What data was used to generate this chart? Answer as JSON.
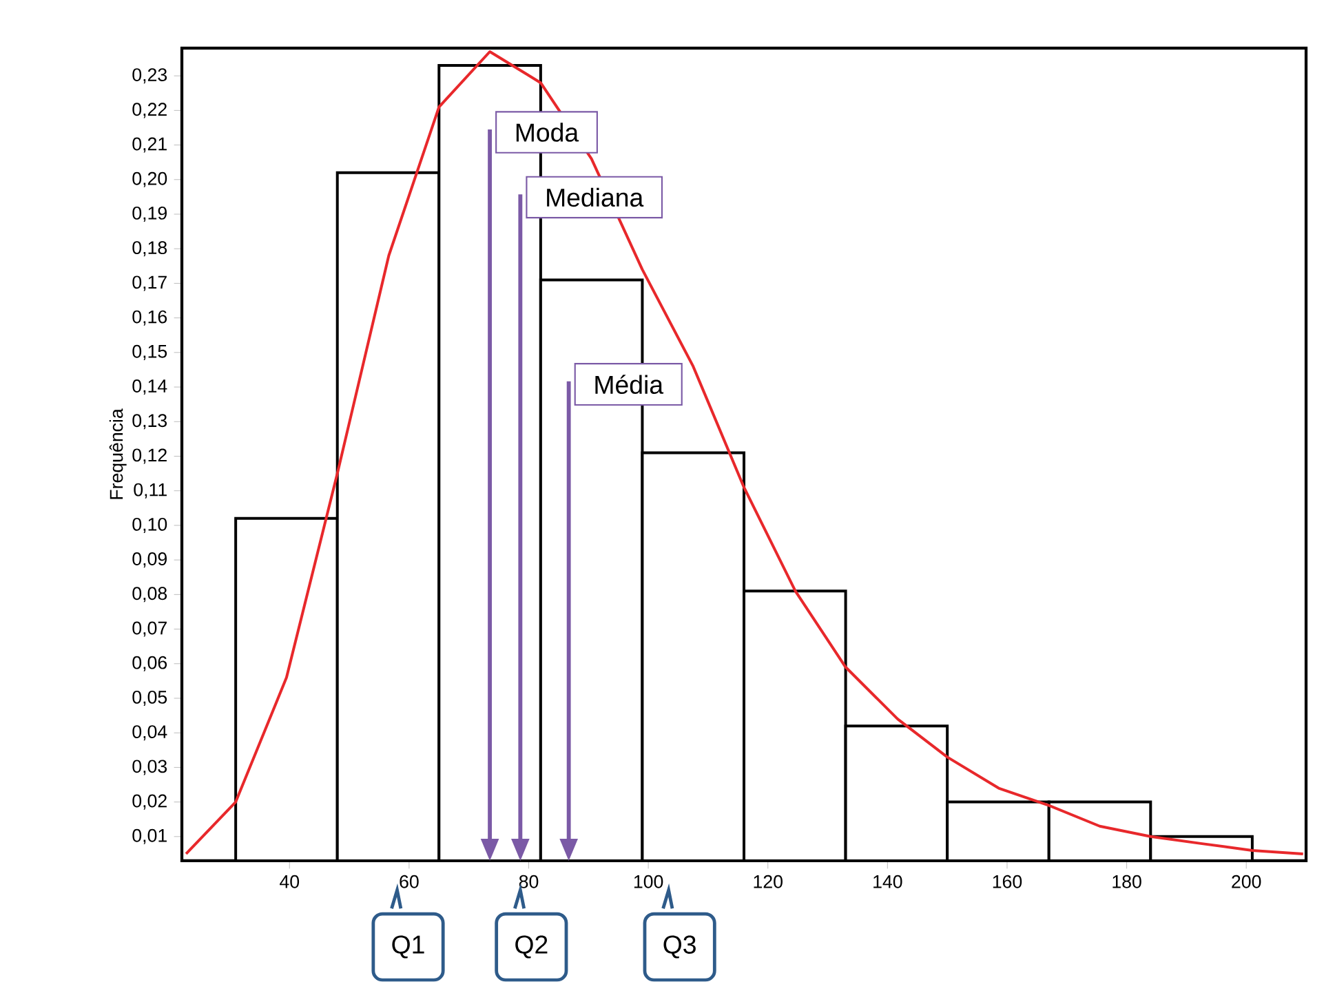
{
  "chart_data": {
    "type": "histogram",
    "ylabel": "Frequência",
    "bins": [
      31,
      48,
      65,
      82,
      99,
      116,
      133,
      150,
      167,
      184,
      201
    ],
    "values": [
      0.102,
      0.202,
      0.233,
      0.171,
      0.121,
      0.081,
      0.042,
      0.02,
      0.02,
      0.01
    ],
    "color": "#000000",
    "series": [
      {
        "type": "line",
        "color": "#e8282b",
        "x": [
          22.7,
          31,
          39.5,
          48,
          56.6,
          65,
          73.5,
          82,
          90.5,
          99,
          107.5,
          116,
          124.6,
          133,
          141.7,
          150,
          158.6,
          167,
          175.5,
          184,
          192.4,
          201,
          209.5
        ],
        "values": [
          0.005,
          0.02,
          0.056,
          0.115,
          0.178,
          0.221,
          0.237,
          0.228,
          0.206,
          0.174,
          0.146,
          0.111,
          0.081,
          0.059,
          0.044,
          0.033,
          0.024,
          0.019,
          0.013,
          0.01,
          0.008,
          0.006,
          0.005
        ]
      }
    ],
    "xlim": [
      22,
      210
    ],
    "ylim": [
      0.003,
      0.238
    ],
    "xticks": [
      40,
      60,
      80,
      100,
      120,
      140,
      160,
      180,
      200
    ],
    "yticks": [
      {
        "value": 0.01,
        "label": "0,01"
      },
      {
        "value": 0.02,
        "label": "0,02"
      },
      {
        "value": 0.03,
        "label": "0,03"
      },
      {
        "value": 0.04,
        "label": "0,04"
      },
      {
        "value": 0.05,
        "label": "0,05"
      },
      {
        "value": 0.06,
        "label": "0,06"
      },
      {
        "value": 0.07,
        "label": "0,07"
      },
      {
        "value": 0.08,
        "label": "0,08"
      },
      {
        "value": 0.09,
        "label": "0,09"
      },
      {
        "value": 0.1,
        "label": "0,10"
      },
      {
        "value": 0.11,
        "label": "0,11"
      },
      {
        "value": 0.12,
        "label": "0,12"
      },
      {
        "value": 0.13,
        "label": "0,13"
      },
      {
        "value": 0.14,
        "label": "0,14"
      },
      {
        "value": 0.15,
        "label": "0,15"
      },
      {
        "value": 0.16,
        "label": "0,16"
      },
      {
        "value": 0.17,
        "label": "0,17"
      },
      {
        "value": 0.18,
        "label": "0,18"
      },
      {
        "value": 0.19,
        "label": "0,19"
      },
      {
        "value": 0.2,
        "label": "0,20"
      },
      {
        "value": 0.21,
        "label": "0,21"
      },
      {
        "value": 0.22,
        "label": "0,22"
      },
      {
        "value": 0.23,
        "label": "0,23"
      }
    ],
    "ref_lines": [
      {
        "axis": "x",
        "value": 73.5,
        "label": "Moda",
        "color": "#7b5aa6"
      },
      {
        "axis": "x",
        "value": 78.6,
        "label": "Mediana",
        "color": "#7b5aa6"
      },
      {
        "axis": "x",
        "value": 86.7,
        "label": "Média",
        "color": "#7b5aa6"
      }
    ],
    "annotations": [
      {
        "text": "Q1",
        "x": 58,
        "y": 0.003
      },
      {
        "text": "Q2",
        "x": 78.6,
        "y": 0.003
      },
      {
        "text": "Q3",
        "x": 103.4,
        "y": 0.003
      }
    ]
  }
}
